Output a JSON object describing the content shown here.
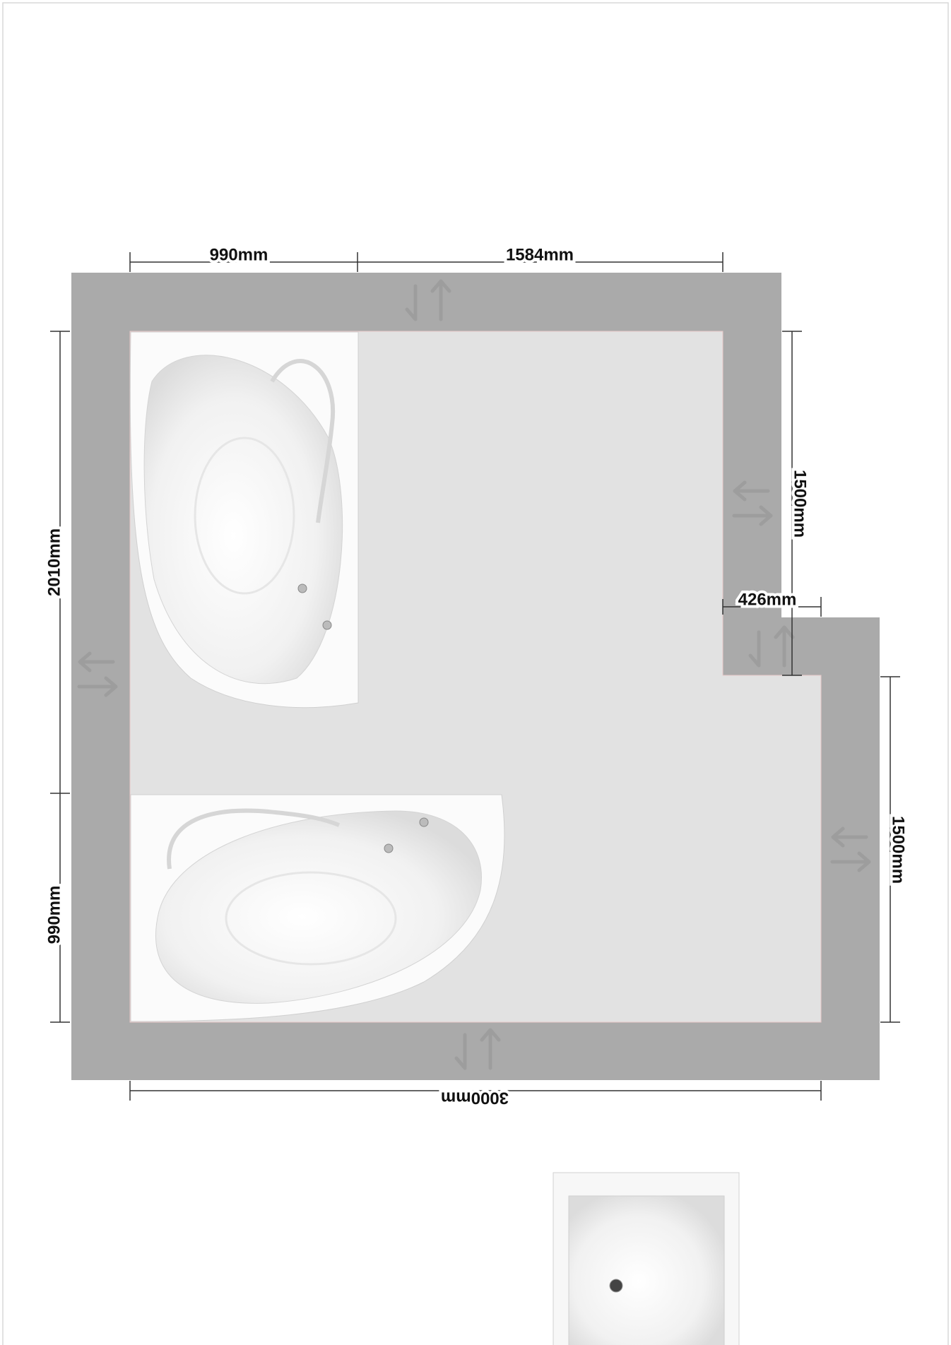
{
  "dimensions": {
    "top_left": "990mm",
    "top_right": "1584mm",
    "left_upper": "2010mm",
    "left_lower": "990mm",
    "right_upper": "1500mm",
    "notch": "426mm",
    "right_lower": "1500mm",
    "bottom": "3000mm"
  }
}
